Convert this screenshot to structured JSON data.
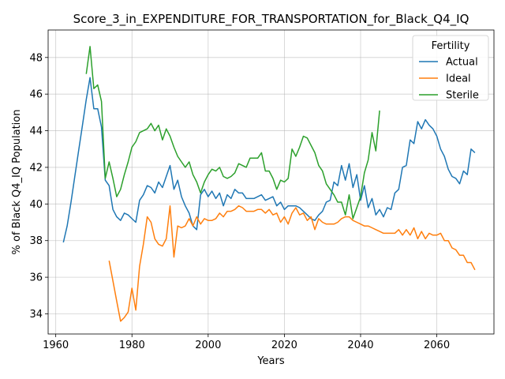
{
  "chart_data": {
    "type": "line",
    "title": "Score_3_in_EXPENDITURE_FOR_TRANSPORTATION_for_Black_Q4_IQ",
    "xlabel": "Years",
    "ylabel": "% of Black Q4_IQ Population",
    "xlim": [
      1958,
      2075
    ],
    "ylim": [
      32.9,
      49.5
    ],
    "xticks": [
      1960,
      1980,
      2000,
      2020,
      2040,
      2060
    ],
    "yticks": [
      34,
      36,
      38,
      40,
      42,
      44,
      46,
      48
    ],
    "grid": true,
    "legend": {
      "title": "Fertility",
      "placement": "top-right"
    },
    "series": [
      {
        "name": "Actual",
        "color": "#1f77b4",
        "points": [
          [
            1962,
            37.9
          ],
          [
            1963,
            38.8
          ],
          [
            1964,
            40.1
          ],
          [
            1965,
            41.5
          ],
          [
            1966,
            42.9
          ],
          [
            1967,
            44.3
          ],
          [
            1968,
            45.7
          ],
          [
            1969,
            46.9
          ],
          [
            1970,
            45.2
          ],
          [
            1971,
            45.2
          ],
          [
            1972,
            44.2
          ],
          [
            1973,
            41.3
          ],
          [
            1974,
            41.0
          ],
          [
            1975,
            39.7
          ],
          [
            1976,
            39.3
          ],
          [
            1977,
            39.1
          ],
          [
            1978,
            39.5
          ],
          [
            1979,
            39.4
          ],
          [
            1980,
            39.2
          ],
          [
            1981,
            39.0
          ],
          [
            1982,
            40.2
          ],
          [
            1983,
            40.5
          ],
          [
            1984,
            41.0
          ],
          [
            1985,
            40.9
          ],
          [
            1986,
            40.6
          ],
          [
            1987,
            41.2
          ],
          [
            1988,
            40.9
          ],
          [
            1989,
            41.5
          ],
          [
            1990,
            42.1
          ],
          [
            1991,
            40.8
          ],
          [
            1992,
            41.3
          ],
          [
            1993,
            40.4
          ],
          [
            1994,
            39.9
          ],
          [
            1995,
            39.5
          ],
          [
            1996,
            38.8
          ],
          [
            1997,
            38.6
          ],
          [
            1998,
            40.5
          ],
          [
            1999,
            40.8
          ],
          [
            2000,
            40.4
          ],
          [
            2001,
            40.7
          ],
          [
            2002,
            40.3
          ],
          [
            2003,
            40.6
          ],
          [
            2004,
            39.9
          ],
          [
            2005,
            40.5
          ],
          [
            2006,
            40.3
          ],
          [
            2007,
            40.8
          ],
          [
            2008,
            40.6
          ],
          [
            2009,
            40.6
          ],
          [
            2010,
            40.3
          ],
          [
            2011,
            40.3
          ],
          [
            2012,
            40.3
          ],
          [
            2013,
            40.4
          ],
          [
            2014,
            40.5
          ],
          [
            2015,
            40.2
          ],
          [
            2016,
            40.3
          ],
          [
            2017,
            40.4
          ],
          [
            2018,
            39.9
          ],
          [
            2019,
            40.1
          ],
          [
            2020,
            39.7
          ],
          [
            2021,
            39.9
          ],
          [
            2022,
            39.9
          ],
          [
            2023,
            39.9
          ],
          [
            2024,
            39.8
          ],
          [
            2025,
            39.6
          ],
          [
            2026,
            39.4
          ],
          [
            2027,
            39.2
          ],
          [
            2028,
            39.1
          ],
          [
            2029,
            39.4
          ],
          [
            2030,
            39.6
          ],
          [
            2031,
            40.1
          ],
          [
            2032,
            40.2
          ],
          [
            2033,
            41.2
          ],
          [
            2034,
            41.0
          ],
          [
            2035,
            42.1
          ],
          [
            2036,
            41.3
          ],
          [
            2037,
            42.2
          ],
          [
            2038,
            40.9
          ],
          [
            2039,
            41.6
          ],
          [
            2040,
            40.2
          ],
          [
            2041,
            41.0
          ],
          [
            2042,
            39.8
          ],
          [
            2043,
            40.3
          ],
          [
            2044,
            39.4
          ],
          [
            2045,
            39.7
          ],
          [
            2046,
            39.3
          ],
          [
            2047,
            39.8
          ],
          [
            2048,
            39.7
          ],
          [
            2049,
            40.6
          ],
          [
            2050,
            40.8
          ],
          [
            2051,
            42.0
          ],
          [
            2052,
            42.1
          ],
          [
            2053,
            43.5
          ],
          [
            2054,
            43.3
          ],
          [
            2055,
            44.5
          ],
          [
            2056,
            44.1
          ],
          [
            2057,
            44.6
          ],
          [
            2058,
            44.3
          ],
          [
            2059,
            44.1
          ],
          [
            2060,
            43.7
          ],
          [
            2061,
            43.0
          ],
          [
            2062,
            42.6
          ],
          [
            2063,
            41.9
          ],
          [
            2064,
            41.5
          ],
          [
            2065,
            41.4
          ],
          [
            2066,
            41.1
          ],
          [
            2067,
            41.8
          ],
          [
            2068,
            41.6
          ],
          [
            2069,
            43.0
          ],
          [
            2070,
            42.8
          ]
        ]
      },
      {
        "name": "Ideal",
        "color": "#ff7f0e",
        "points": [
          [
            1974,
            36.9
          ],
          [
            1975,
            35.8
          ],
          [
            1976,
            34.7
          ],
          [
            1977,
            33.6
          ],
          [
            1978,
            33.8
          ],
          [
            1979,
            34.1
          ],
          [
            1980,
            35.4
          ],
          [
            1981,
            34.2
          ],
          [
            1982,
            36.6
          ],
          [
            1983,
            37.8
          ],
          [
            1984,
            39.3
          ],
          [
            1985,
            39.0
          ],
          [
            1986,
            38.1
          ],
          [
            1987,
            37.8
          ],
          [
            1988,
            37.7
          ],
          [
            1989,
            38.1
          ],
          [
            1990,
            39.9
          ],
          [
            1991,
            37.1
          ],
          [
            1992,
            38.8
          ],
          [
            1993,
            38.7
          ],
          [
            1994,
            38.8
          ],
          [
            1995,
            39.2
          ],
          [
            1996,
            38.8
          ],
          [
            1997,
            39.3
          ],
          [
            1998,
            38.9
          ],
          [
            1999,
            39.2
          ],
          [
            2000,
            39.1
          ],
          [
            2001,
            39.1
          ],
          [
            2002,
            39.2
          ],
          [
            2003,
            39.5
          ],
          [
            2004,
            39.3
          ],
          [
            2005,
            39.6
          ],
          [
            2006,
            39.6
          ],
          [
            2007,
            39.7
          ],
          [
            2008,
            39.9
          ],
          [
            2009,
            39.8
          ],
          [
            2010,
            39.6
          ],
          [
            2011,
            39.6
          ],
          [
            2012,
            39.6
          ],
          [
            2013,
            39.7
          ],
          [
            2014,
            39.7
          ],
          [
            2015,
            39.5
          ],
          [
            2016,
            39.7
          ],
          [
            2017,
            39.4
          ],
          [
            2018,
            39.5
          ],
          [
            2019,
            39.0
          ],
          [
            2020,
            39.3
          ],
          [
            2021,
            38.9
          ],
          [
            2022,
            39.5
          ],
          [
            2023,
            39.8
          ],
          [
            2024,
            39.4
          ],
          [
            2025,
            39.5
          ],
          [
            2026,
            39.1
          ],
          [
            2027,
            39.3
          ],
          [
            2028,
            38.6
          ],
          [
            2029,
            39.2
          ],
          [
            2030,
            39.0
          ],
          [
            2031,
            38.9
          ],
          [
            2032,
            38.9
          ],
          [
            2033,
            38.9
          ],
          [
            2034,
            39.0
          ],
          [
            2035,
            39.2
          ],
          [
            2036,
            39.3
          ],
          [
            2037,
            39.3
          ],
          [
            2038,
            39.1
          ],
          [
            2039,
            39.0
          ],
          [
            2040,
            38.9
          ],
          [
            2041,
            38.8
          ],
          [
            2042,
            38.8
          ],
          [
            2043,
            38.7
          ],
          [
            2044,
            38.6
          ],
          [
            2045,
            38.5
          ],
          [
            2046,
            38.4
          ],
          [
            2047,
            38.4
          ],
          [
            2048,
            38.4
          ],
          [
            2049,
            38.4
          ],
          [
            2050,
            38.6
          ],
          [
            2051,
            38.3
          ],
          [
            2052,
            38.6
          ],
          [
            2053,
            38.3
          ],
          [
            2054,
            38.7
          ],
          [
            2055,
            38.1
          ],
          [
            2056,
            38.5
          ],
          [
            2057,
            38.1
          ],
          [
            2058,
            38.4
          ],
          [
            2059,
            38.3
          ],
          [
            2060,
            38.3
          ],
          [
            2061,
            38.4
          ],
          [
            2062,
            38.0
          ],
          [
            2063,
            38.0
          ],
          [
            2064,
            37.6
          ],
          [
            2065,
            37.5
          ],
          [
            2066,
            37.2
          ],
          [
            2067,
            37.2
          ],
          [
            2068,
            36.8
          ],
          [
            2069,
            36.8
          ],
          [
            2070,
            36.4
          ]
        ]
      },
      {
        "name": "Sterile",
        "color": "#2ca02c",
        "points": [
          [
            1968,
            47.1
          ],
          [
            1969,
            48.6
          ],
          [
            1970,
            46.3
          ],
          [
            1971,
            46.5
          ],
          [
            1972,
            45.6
          ],
          [
            1973,
            41.4
          ],
          [
            1974,
            42.3
          ],
          [
            1975,
            41.4
          ],
          [
            1976,
            40.4
          ],
          [
            1977,
            40.8
          ],
          [
            1978,
            41.6
          ],
          [
            1979,
            42.3
          ],
          [
            1980,
            43.1
          ],
          [
            1981,
            43.4
          ],
          [
            1982,
            43.9
          ],
          [
            1983,
            44.0
          ],
          [
            1984,
            44.1
          ],
          [
            1985,
            44.4
          ],
          [
            1986,
            44.0
          ],
          [
            1987,
            44.3
          ],
          [
            1988,
            43.5
          ],
          [
            1989,
            44.1
          ],
          [
            1990,
            43.7
          ],
          [
            1991,
            43.1
          ],
          [
            1992,
            42.6
          ],
          [
            1993,
            42.3
          ],
          [
            1994,
            42.0
          ],
          [
            1995,
            42.3
          ],
          [
            1996,
            41.6
          ],
          [
            1997,
            41.2
          ],
          [
            1998,
            40.6
          ],
          [
            1999,
            41.2
          ],
          [
            2000,
            41.6
          ],
          [
            2001,
            41.9
          ],
          [
            2002,
            41.8
          ],
          [
            2003,
            42.0
          ],
          [
            2004,
            41.5
          ],
          [
            2005,
            41.4
          ],
          [
            2006,
            41.5
          ],
          [
            2007,
            41.7
          ],
          [
            2008,
            42.2
          ],
          [
            2009,
            42.1
          ],
          [
            2010,
            42.0
          ],
          [
            2011,
            42.5
          ],
          [
            2012,
            42.5
          ],
          [
            2013,
            42.5
          ],
          [
            2014,
            42.8
          ],
          [
            2015,
            41.8
          ],
          [
            2016,
            41.8
          ],
          [
            2017,
            41.4
          ],
          [
            2018,
            40.8
          ],
          [
            2019,
            41.3
          ],
          [
            2020,
            41.2
          ],
          [
            2021,
            41.4
          ],
          [
            2022,
            43.0
          ],
          [
            2023,
            42.6
          ],
          [
            2024,
            43.1
          ],
          [
            2025,
            43.7
          ],
          [
            2026,
            43.6
          ],
          [
            2027,
            43.2
          ],
          [
            2028,
            42.8
          ],
          [
            2029,
            42.1
          ],
          [
            2030,
            41.8
          ],
          [
            2031,
            41.1
          ],
          [
            2032,
            40.8
          ],
          [
            2033,
            40.5
          ],
          [
            2034,
            40.1
          ],
          [
            2035,
            40.1
          ],
          [
            2036,
            39.4
          ],
          [
            2037,
            40.5
          ],
          [
            2038,
            39.2
          ],
          [
            2039,
            39.8
          ],
          [
            2040,
            40.4
          ],
          [
            2041,
            41.7
          ],
          [
            2042,
            42.4
          ],
          [
            2043,
            43.9
          ],
          [
            2044,
            42.9
          ],
          [
            2045,
            45.1
          ]
        ]
      }
    ]
  }
}
